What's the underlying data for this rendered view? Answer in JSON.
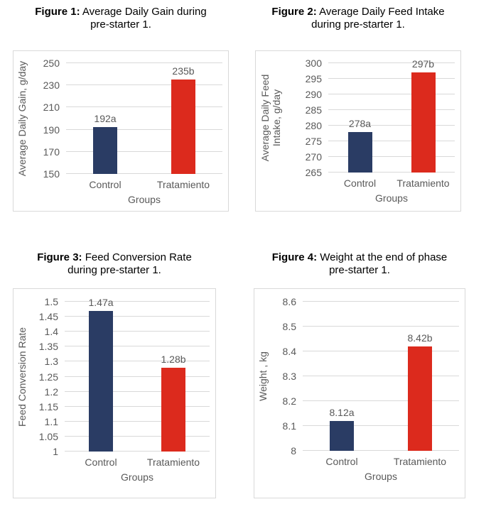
{
  "colors": {
    "control_bar": "#2A3C64",
    "treatment_bar": "#DC2A1D",
    "gridline": "#D9D9D9",
    "box_border": "#D9D9D9",
    "axis_text": "#595959",
    "title_text": "#000000"
  },
  "chart_data": [
    {
      "type": "bar",
      "title_bold": "Figure 1:",
      "title_line1": "Average Daily Gain during",
      "title_line2": "pre-starter 1.",
      "ylabel": "Average Daily Gain, g/day",
      "xlabel": "Groups",
      "categories": [
        "Control",
        "Tratamiento"
      ],
      "values": [
        192,
        235
      ],
      "data_labels": [
        "192a",
        "235b"
      ],
      "bar_colors": [
        "#2A3C64",
        "#DC2A1D"
      ],
      "ylim": [
        150,
        250
      ],
      "yticks": [
        150,
        170,
        190,
        210,
        230,
        250
      ],
      "ytick_labels": [
        "150",
        "170",
        "190",
        "210",
        "230",
        "250"
      ],
      "grid": true,
      "legend": "none"
    },
    {
      "type": "bar",
      "title_bold": "Figure 2:",
      "title_line1": "Average Daily Feed Intake",
      "title_line2": "during pre-starter 1.",
      "ylabel": "Average Daily Feed Intake, g/day",
      "xlabel": "Groups",
      "categories": [
        "Control",
        "Tratamiento"
      ],
      "values": [
        278,
        297
      ],
      "data_labels": [
        "278a",
        "297b"
      ],
      "bar_colors": [
        "#2A3C64",
        "#DC2A1D"
      ],
      "ylim": [
        265,
        300
      ],
      "yticks": [
        265,
        270,
        275,
        280,
        285,
        290,
        295,
        300
      ],
      "ytick_labels": [
        "265",
        "270",
        "275",
        "280",
        "285",
        "290",
        "295",
        "300"
      ],
      "grid": true,
      "legend": "none"
    },
    {
      "type": "bar",
      "title_bold": "Figure 3:",
      "title_line1": "Feed Conversion Rate",
      "title_line2": "during pre-starter 1.",
      "ylabel": "Feed Conversion Rate",
      "xlabel": "Groups",
      "categories": [
        "Control",
        "Tratamiento"
      ],
      "values": [
        1.47,
        1.28
      ],
      "data_labels": [
        "1.47a",
        "1.28b"
      ],
      "bar_colors": [
        "#2A3C64",
        "#DC2A1D"
      ],
      "ylim": [
        1,
        1.5
      ],
      "yticks": [
        1,
        1.05,
        1.1,
        1.15,
        1.2,
        1.25,
        1.3,
        1.35,
        1.4,
        1.45,
        1.5
      ],
      "ytick_labels": [
        "1",
        "1.05",
        "1.1",
        "1.15",
        "1.2",
        "1.25",
        "1.3",
        "1.35",
        "1.4",
        "1.45",
        "1.5"
      ],
      "grid": true,
      "legend": "none"
    },
    {
      "type": "bar",
      "title_bold": "Figure 4:",
      "title_line1": "Weight at the end of phase",
      "title_line2": "pre-starter 1.",
      "ylabel": "Weight , kg",
      "xlabel": "Groups",
      "categories": [
        "Control",
        "Tratamiento"
      ],
      "values": [
        8.12,
        8.42
      ],
      "data_labels": [
        "8.12a",
        "8.42b"
      ],
      "bar_colors": [
        "#2A3C64",
        "#DC2A1D"
      ],
      "ylim": [
        8,
        8.6
      ],
      "yticks": [
        8,
        8.1,
        8.2,
        8.3,
        8.4,
        8.5,
        8.6
      ],
      "ytick_labels": [
        "8",
        "8.1",
        "8.2",
        "8.3",
        "8.4",
        "8.5",
        "8.6"
      ],
      "grid": true,
      "legend": "none"
    }
  ]
}
